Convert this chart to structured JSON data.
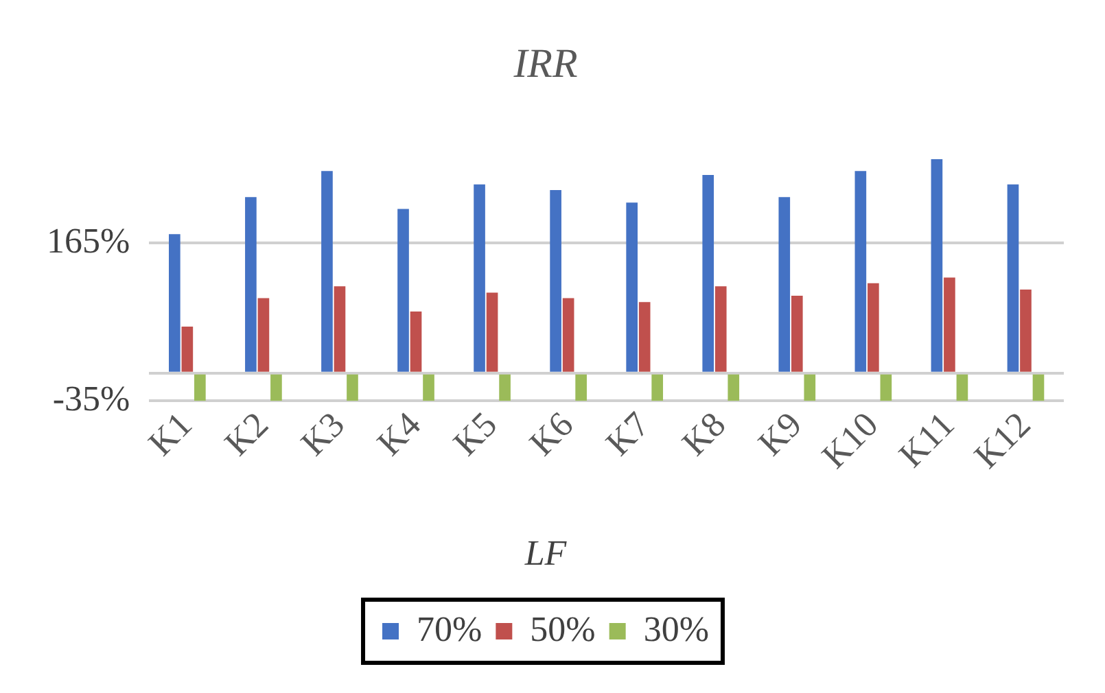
{
  "chart_data": {
    "type": "bar",
    "title": "IRR",
    "legend_title": "LF",
    "categories": [
      "K1",
      "K2",
      "K3",
      "K4",
      "K5",
      "K6",
      "K7",
      "K8",
      "K9",
      "K10",
      "K11",
      "K12"
    ],
    "series": [
      {
        "name": "70%",
        "color": "#4472c4",
        "values": [
          176,
          223,
          256,
          208,
          239,
          232,
          216,
          251,
          223,
          256,
          271,
          239
        ]
      },
      {
        "name": "50%",
        "color": "#c0504d",
        "values": [
          59,
          95,
          110,
          78,
          102,
          95,
          90,
          110,
          98,
          114,
          121,
          106
        ]
      },
      {
        "name": "30%",
        "color": "#9bbb59",
        "values": [
          -35,
          -35,
          -35,
          -35,
          -35,
          -35,
          -35,
          -35,
          -35,
          -35,
          -35,
          -35
        ]
      }
    ],
    "ylim": [
      -35,
      271
    ],
    "yticks": [
      {
        "value": -35,
        "label": "-35%"
      },
      {
        "value": 0,
        "label": null
      },
      {
        "value": 165,
        "label": "165%"
      }
    ],
    "grid": "y",
    "legend": "bottom"
  }
}
